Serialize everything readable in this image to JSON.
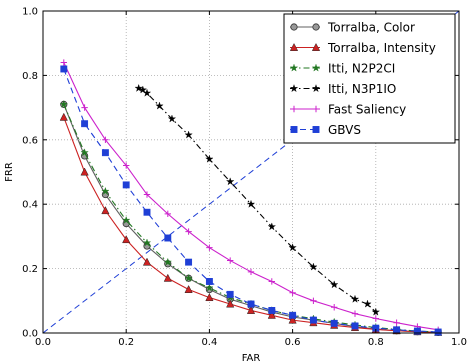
{
  "chart_data": {
    "type": "line",
    "title": "",
    "xlabel": "FAR",
    "ylabel": "FRR",
    "xlim": [
      0.0,
      1.0
    ],
    "ylim": [
      0.0,
      1.0
    ],
    "xticks": [
      "0.0",
      "0.2",
      "0.4",
      "0.6",
      "0.8",
      "1.0"
    ],
    "yticks": [
      "0.0",
      "0.2",
      "0.4",
      "0.6",
      "0.8",
      "1.0"
    ],
    "grid": true,
    "legend_position": "top-right",
    "series": [
      {
        "name": "Torralba, Color",
        "color": "#606060",
        "marker": "circle",
        "dash": "solid",
        "x": [
          0.05,
          0.1,
          0.15,
          0.2,
          0.25,
          0.3,
          0.35,
          0.4,
          0.45,
          0.5,
          0.55,
          0.6,
          0.65,
          0.7,
          0.75,
          0.8,
          0.85,
          0.9,
          0.95
        ],
        "y": [
          0.71,
          0.55,
          0.43,
          0.34,
          0.27,
          0.215,
          0.17,
          0.135,
          0.105,
          0.085,
          0.065,
          0.05,
          0.04,
          0.03,
          0.02,
          0.012,
          0.007,
          0.004,
          0.002
        ]
      },
      {
        "name": "Torralba, Intensity",
        "color": "#cc2222",
        "marker": "triangle",
        "dash": "solid",
        "x": [
          0.05,
          0.1,
          0.15,
          0.2,
          0.25,
          0.3,
          0.35,
          0.4,
          0.45,
          0.5,
          0.55,
          0.6,
          0.65,
          0.7,
          0.75,
          0.8,
          0.85,
          0.9,
          0.95
        ],
        "y": [
          0.67,
          0.5,
          0.38,
          0.29,
          0.22,
          0.17,
          0.135,
          0.11,
          0.09,
          0.07,
          0.055,
          0.04,
          0.032,
          0.024,
          0.017,
          0.011,
          0.007,
          0.004,
          0.002
        ]
      },
      {
        "name": "Itti, N2P2CI",
        "color": "#227722",
        "marker": "star",
        "dash": "dashdot",
        "x": [
          0.05,
          0.1,
          0.15,
          0.2,
          0.25,
          0.3,
          0.35,
          0.4,
          0.45,
          0.5,
          0.55,
          0.6,
          0.65,
          0.7,
          0.75,
          0.8,
          0.85,
          0.9,
          0.95
        ],
        "y": [
          0.71,
          0.56,
          0.44,
          0.35,
          0.28,
          0.22,
          0.17,
          0.14,
          0.11,
          0.09,
          0.07,
          0.055,
          0.044,
          0.034,
          0.025,
          0.017,
          0.011,
          0.006,
          0.003
        ]
      },
      {
        "name": "Itti, N3P1IO",
        "color": "#000000",
        "marker": "star",
        "dash": "dashdot",
        "x": [
          0.23,
          0.24,
          0.25,
          0.28,
          0.31,
          0.35,
          0.4,
          0.45,
          0.5,
          0.55,
          0.6,
          0.65,
          0.7,
          0.75,
          0.78,
          0.8
        ],
        "y": [
          0.76,
          0.755,
          0.745,
          0.705,
          0.665,
          0.615,
          0.54,
          0.47,
          0.4,
          0.33,
          0.265,
          0.205,
          0.15,
          0.105,
          0.09,
          0.065
        ]
      },
      {
        "name": "Fast Saliency",
        "color": "#cc22cc",
        "marker": "plus",
        "dash": "solid",
        "x": [
          0.05,
          0.1,
          0.15,
          0.2,
          0.25,
          0.3,
          0.35,
          0.4,
          0.45,
          0.5,
          0.55,
          0.6,
          0.65,
          0.7,
          0.75,
          0.8,
          0.85,
          0.9,
          0.95
        ],
        "y": [
          0.84,
          0.7,
          0.6,
          0.52,
          0.43,
          0.37,
          0.315,
          0.265,
          0.225,
          0.19,
          0.16,
          0.125,
          0.1,
          0.08,
          0.06,
          0.045,
          0.032,
          0.02,
          0.01
        ]
      },
      {
        "name": "GBVS",
        "color": "#1f3fd6",
        "marker": "square",
        "dash": "dashed",
        "x": [
          0.05,
          0.1,
          0.15,
          0.2,
          0.25,
          0.3,
          0.35,
          0.4,
          0.45,
          0.5,
          0.55,
          0.6,
          0.65,
          0.7,
          0.75,
          0.8,
          0.85,
          0.9,
          0.95
        ],
        "y": [
          0.82,
          0.65,
          0.56,
          0.46,
          0.375,
          0.295,
          0.22,
          0.16,
          0.12,
          0.09,
          0.07,
          0.055,
          0.04,
          0.03,
          0.022,
          0.015,
          0.01,
          0.006,
          0.003
        ]
      }
    ],
    "reference_line": {
      "color": "#1f3fd6",
      "dash": "dashed",
      "x": [
        0.0,
        1.0
      ],
      "y": [
        0.0,
        1.0
      ]
    }
  }
}
